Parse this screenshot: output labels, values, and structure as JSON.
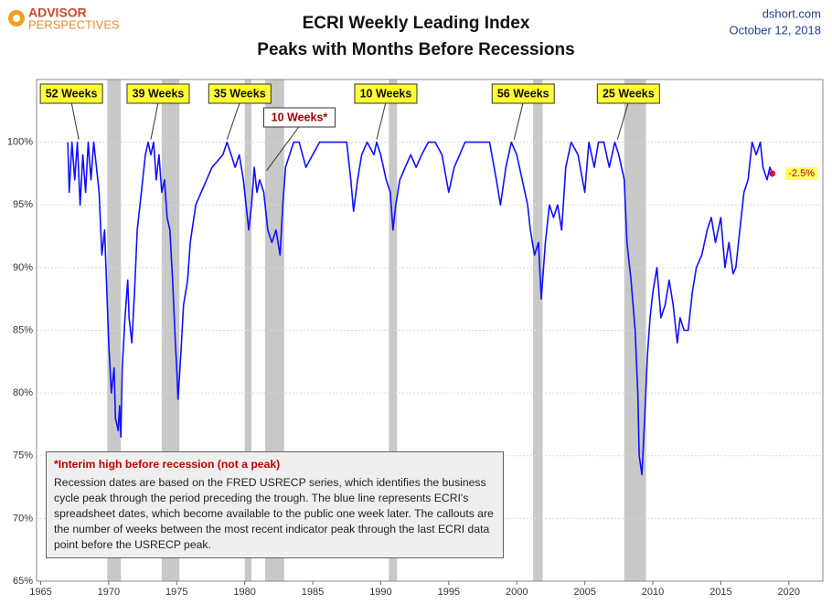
{
  "header": {
    "logo_top": "ADVISOR",
    "logo_bottom": "PERSPECTIVES",
    "source": "dshort.com",
    "date": "October 12, 2018"
  },
  "note": {
    "heading": "*Interim high before recession (not a peak)",
    "text": "Recession dates are based on the FRED USRECP series, which identifies the business cycle peak through the period preceding the trough. The blue line represents ECRI's spreadsheet dates, which become available to the public one week later. The callouts are the number of weeks between the most recent indicator peak through the last ECRI data point before the USRECP peak."
  },
  "chart_data": {
    "type": "line",
    "title": "ECRI Weekly Leading Index",
    "subtitle": "Peaks with Months Before Recessions",
    "xlim": [
      1964.7,
      2022.5
    ],
    "ylim": [
      65,
      105
    ],
    "xticks": [
      1965,
      1970,
      1975,
      1980,
      1985,
      1990,
      1995,
      2000,
      2005,
      2010,
      2015,
      2020
    ],
    "yticks": [
      {
        "value": 65,
        "label": "65%"
      },
      {
        "value": 70,
        "label": "70%"
      },
      {
        "value": 75,
        "label": "75%"
      },
      {
        "value": 80,
        "label": "80%"
      },
      {
        "value": 85,
        "label": "85%"
      },
      {
        "value": 90,
        "label": "90%"
      },
      {
        "value": 95,
        "label": "95%"
      },
      {
        "value": 100,
        "label": "100%"
      }
    ],
    "grid": true,
    "recession_color": "#c8c8c8",
    "recessions": [
      [
        1969.9,
        1970.9
      ],
      [
        1973.9,
        1975.2
      ],
      [
        1980.0,
        1980.5
      ],
      [
        1981.5,
        1982.9
      ],
      [
        1990.6,
        1991.2
      ],
      [
        2001.2,
        2001.9
      ],
      [
        2007.9,
        2009.5
      ]
    ],
    "series": [
      {
        "color": "#1010ff",
        "x": [
          1967.0,
          1967.1,
          1967.3,
          1967.5,
          1967.7,
          1967.9,
          1968.1,
          1968.3,
          1968.5,
          1968.7,
          1968.9,
          1969.1,
          1969.3,
          1969.5,
          1969.7,
          1969.9,
          1970.0,
          1970.2,
          1970.4,
          1970.5,
          1970.7,
          1970.8,
          1970.9,
          1971.0,
          1971.2,
          1971.4,
          1971.5,
          1971.7,
          1971.9,
          1972.1,
          1972.3,
          1972.5,
          1972.7,
          1972.9,
          1973.1,
          1973.3,
          1973.5,
          1973.7,
          1973.9,
          1974.1,
          1974.3,
          1974.5,
          1974.7,
          1974.9,
          1975.0,
          1975.1,
          1975.3,
          1975.5,
          1975.8,
          1976.0,
          1976.4,
          1976.8,
          1977.2,
          1977.6,
          1978.0,
          1978.4,
          1978.7,
          1979.0,
          1979.3,
          1979.6,
          1979.9,
          1980.1,
          1980.3,
          1980.5,
          1980.7,
          1980.9,
          1981.1,
          1981.4,
          1981.7,
          1982.0,
          1982.3,
          1982.6,
          1982.8,
          1983.0,
          1983.3,
          1983.6,
          1984.0,
          1984.5,
          1985.0,
          1985.5,
          1986.0,
          1986.5,
          1987.0,
          1987.5,
          1987.8,
          1988.0,
          1988.3,
          1988.6,
          1989.0,
          1989.5,
          1989.7,
          1990.0,
          1990.4,
          1990.7,
          1990.9,
          1991.1,
          1991.4,
          1991.8,
          1992.2,
          1992.6,
          1993.0,
          1993.5,
          1994.0,
          1994.5,
          1995.0,
          1995.4,
          1995.8,
          1996.2,
          1996.8,
          1997.5,
          1998.0,
          1998.5,
          1998.8,
          1999.2,
          1999.6,
          2000.0,
          2000.4,
          2000.8,
          2001.0,
          2001.3,
          2001.6,
          2001.8,
          2002.1,
          2002.4,
          2002.7,
          2003.0,
          2003.3,
          2003.6,
          2004.0,
          2004.5,
          2005.0,
          2005.3,
          2005.7,
          2006.0,
          2006.4,
          2006.8,
          2007.2,
          2007.5,
          2007.9,
          2008.1,
          2008.4,
          2008.7,
          2008.9,
          2009.0,
          2009.2,
          2009.4,
          2009.6,
          2009.8,
          2010.0,
          2010.3,
          2010.6,
          2010.9,
          2011.2,
          2011.5,
          2011.8,
          2012.0,
          2012.3,
          2012.6,
          2012.9,
          2013.2,
          2013.6,
          2014.0,
          2014.3,
          2014.6,
          2015.0,
          2015.3,
          2015.6,
          2015.9,
          2016.1,
          2016.4,
          2016.7,
          2017.0,
          2017.3,
          2017.6,
          2017.9,
          2018.1,
          2018.4,
          2018.6,
          2018.78
        ],
        "values": [
          100,
          96,
          100,
          97,
          100,
          95,
          99,
          96,
          100,
          97,
          100,
          98,
          96,
          91,
          93,
          87,
          84,
          80,
          82,
          78,
          77,
          79,
          76.5,
          82,
          86,
          89,
          86,
          84,
          88,
          93,
          95,
          97,
          99,
          100,
          99,
          100,
          97,
          99,
          96,
          97,
          94,
          93,
          89,
          84,
          82,
          79.5,
          83,
          87,
          89,
          92,
          95,
          96,
          97,
          98,
          98.5,
          99,
          100,
          99,
          98,
          99,
          97,
          95,
          93,
          95,
          98,
          96,
          97,
          96,
          93,
          92,
          93,
          91,
          95,
          98,
          99,
          100,
          100,
          98,
          99,
          100,
          100,
          100,
          100,
          100,
          97,
          94.5,
          97,
          99,
          100,
          99,
          100,
          99,
          97,
          96,
          93,
          95,
          97,
          98,
          99,
          98,
          99,
          100,
          100,
          99,
          96,
          98,
          99,
          100,
          100,
          100,
          100,
          97,
          95,
          98,
          100,
          99,
          97,
          95,
          93,
          91,
          92,
          87.5,
          92,
          95,
          94,
          95,
          93,
          98,
          100,
          99,
          96,
          100,
          98,
          100,
          100,
          98,
          100,
          99,
          97,
          92,
          89,
          85,
          80,
          75,
          73.5,
          78,
          83,
          86,
          88,
          90,
          86,
          87,
          89,
          87,
          84,
          86,
          85,
          85,
          88,
          90,
          91,
          93,
          94,
          92,
          94,
          90,
          92,
          89.5,
          90,
          93,
          96,
          97,
          100,
          99,
          100,
          98,
          97,
          98,
          97.5
        ]
      }
    ],
    "callouts": [
      {
        "text": "52 Weeks",
        "x": 1967.8,
        "value": 100
      },
      {
        "text": "39 Weeks",
        "x": 1973.1,
        "value": 100
      },
      {
        "text": "35 Weeks",
        "x": 1978.7,
        "value": 100
      },
      {
        "text": "10 Weeks*",
        "x": 1981.6,
        "value": 97.5
      },
      {
        "text": "10 Weeks",
        "x": 1989.7,
        "value": 100
      },
      {
        "text": "56 Weeks",
        "x": 1999.8,
        "value": 100
      },
      {
        "text": "25 Weeks",
        "x": 2007.4,
        "value": 100
      }
    ],
    "last_point": {
      "x": 2018.78,
      "value": 97.5,
      "color": "#e0004d",
      "label": "-2.5%"
    }
  }
}
